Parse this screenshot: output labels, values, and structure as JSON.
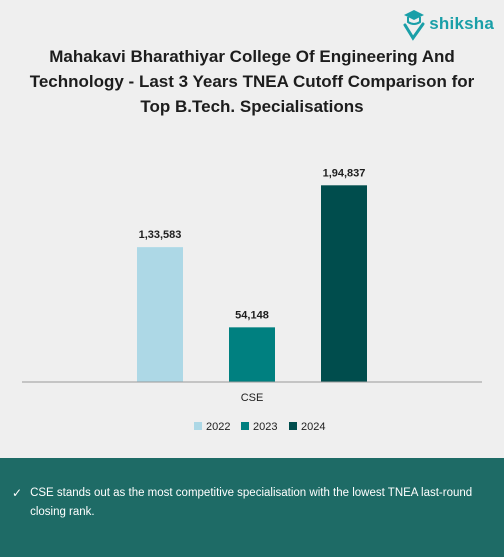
{
  "brand": {
    "name": "shiksha"
  },
  "title": "Mahakavi Bharathiyar College Of Engineering And Technology - Last 3 Years TNEA Cutoff Comparison for Top B.Tech. Specialisations",
  "insight": {
    "icon": "check-icon",
    "text": "CSE stands out as the most competitive specialisation with the lowest TNEA last-round closing rank."
  },
  "chart_data": {
    "type": "bar",
    "categories": [
      "CSE"
    ],
    "series": [
      {
        "name": "2022",
        "values": [
          133583
        ],
        "label": "1,33,583",
        "color": "#add8e6"
      },
      {
        "name": "2023",
        "values": [
          54148
        ],
        "label": "54,148",
        "color": "#008080"
      },
      {
        "name": "2024",
        "values": [
          194837
        ],
        "label": "1,94,837",
        "color": "#004d4d"
      }
    ],
    "title": "",
    "xlabel": "",
    "ylabel": "",
    "ylim": [
      0,
      210000
    ],
    "grid": false,
    "legend": "bottom"
  }
}
